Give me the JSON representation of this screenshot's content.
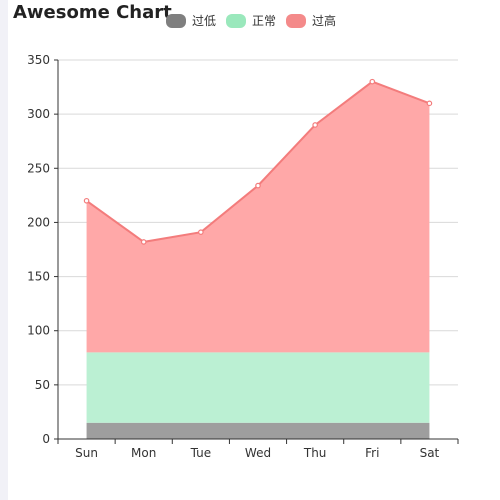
{
  "chart_data": {
    "type": "area",
    "title": "Awesome Chart",
    "categories": [
      "Sun",
      "Mon",
      "Tue",
      "Wed",
      "Thu",
      "Fri",
      "Sat"
    ],
    "ylim": [
      0,
      350
    ],
    "yticks": [
      0,
      50,
      100,
      150,
      200,
      250,
      300,
      350
    ],
    "bands": [
      {
        "name": "过低",
        "from": 0,
        "to": 15,
        "color": "#9e9e9e"
      },
      {
        "name": "正常",
        "from": 15,
        "to": 80,
        "color": "#bbf0d3"
      },
      {
        "name": "过高",
        "from": 80,
        "color": "#ffa8a8"
      }
    ],
    "series": [
      {
        "values": [
          220,
          182,
          191,
          234,
          290,
          330,
          310
        ],
        "color": "#f37c7c"
      }
    ],
    "legend": {
      "position": "top",
      "items": [
        {
          "label": "过低",
          "color": "#7f7f7f"
        },
        {
          "label": "正常",
          "color": "#9ae8bc"
        },
        {
          "label": "过高",
          "color": "#f48a8a"
        }
      ]
    },
    "grid": true
  }
}
